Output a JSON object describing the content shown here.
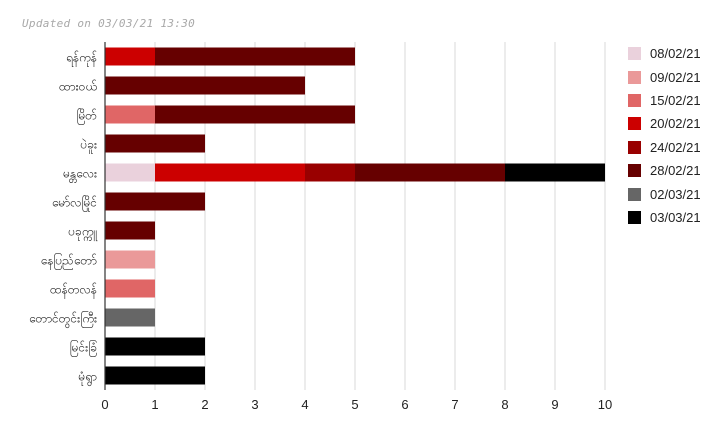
{
  "header": {
    "updated": "Updated on 03/03/21 13:30"
  },
  "chart_data": {
    "type": "bar",
    "orientation": "horizontal",
    "stacked": true,
    "categories": [
      "ရန်ကုန်",
      "ထားဝယ်",
      "မြိတ်",
      "ပဲခူး",
      "မန္တလေး",
      "မော်လမြိုင်",
      "ပခုက္ကူ",
      "နေပြည်တော်",
      "ထန်တလန်",
      "တောင်တွင်းကြီး",
      "မြင်းခြံ",
      "မုံရွာ"
    ],
    "series": [
      {
        "name": "08/02/21",
        "color": "#ead1dc",
        "values": [
          0,
          0,
          0,
          0,
          1,
          0,
          0,
          0,
          0,
          0,
          0,
          0
        ]
      },
      {
        "name": "09/02/21",
        "color": "#ea9999",
        "values": [
          0,
          0,
          0,
          0,
          0,
          0,
          0,
          1,
          0,
          0,
          0,
          0
        ]
      },
      {
        "name": "15/02/21",
        "color": "#e06666",
        "values": [
          0,
          0,
          1,
          0,
          0,
          0,
          0,
          0,
          1,
          0,
          0,
          0
        ]
      },
      {
        "name": "20/02/21",
        "color": "#cc0000",
        "values": [
          1,
          0,
          0,
          0,
          3,
          0,
          0,
          0,
          0,
          0,
          0,
          0
        ]
      },
      {
        "name": "24/02/21",
        "color": "#990000",
        "values": [
          0,
          0,
          0,
          0,
          1,
          0,
          0,
          0,
          0,
          0,
          0,
          0
        ]
      },
      {
        "name": "28/02/21",
        "color": "#660000",
        "values": [
          4,
          4,
          4,
          2,
          3,
          2,
          1,
          0,
          0,
          0,
          0,
          0
        ]
      },
      {
        "name": "02/03/21",
        "color": "#666666",
        "values": [
          0,
          0,
          0,
          0,
          0,
          0,
          0,
          0,
          0,
          1,
          0,
          0
        ]
      },
      {
        "name": "03/03/21",
        "color": "#000000",
        "values": [
          0,
          0,
          0,
          0,
          2,
          0,
          0,
          0,
          0,
          0,
          2,
          2
        ]
      }
    ],
    "xlim": [
      0,
      10
    ],
    "xticks": [
      "0",
      "1",
      "2",
      "3",
      "4",
      "5",
      "6",
      "7",
      "8",
      "9",
      "10"
    ],
    "grid": true,
    "legend_position": "right"
  }
}
